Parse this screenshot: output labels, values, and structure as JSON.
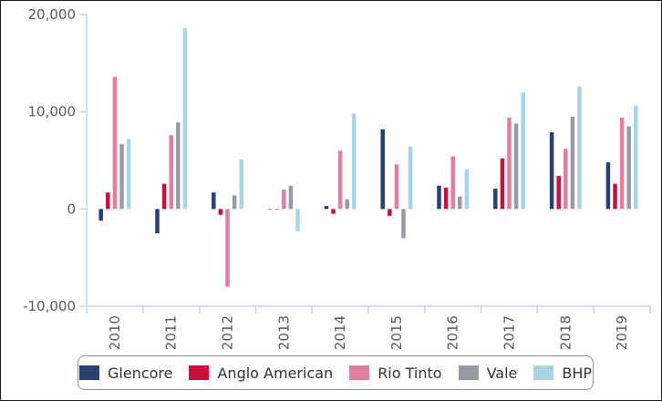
{
  "chart_data": {
    "type": "bar",
    "categories": [
      "2010",
      "2011",
      "2012",
      "2013",
      "2014",
      "2015",
      "2016",
      "2017",
      "2018",
      "2019"
    ],
    "series": [
      {
        "name": "Glencore",
        "color": "#2a3f73",
        "values": [
          -1200,
          -2500,
          1700,
          0,
          300,
          8200,
          2400,
          2100,
          7900,
          4800
        ]
      },
      {
        "name": "Anglo American",
        "color": "#c8103e",
        "values": [
          1700,
          2600,
          -600,
          0,
          -500,
          -700,
          2200,
          5200,
          3400,
          2600
        ]
      },
      {
        "name": "Rio Tinto",
        "color": "#e07fa0",
        "values": [
          13600,
          7600,
          -8000,
          2000,
          6000,
          4600,
          5400,
          9400,
          6200,
          9400
        ]
      },
      {
        "name": "Vale",
        "color": "#9a9ba2",
        "values": [
          6700,
          8900,
          1400,
          2400,
          1000,
          -3000,
          1300,
          8800,
          9500,
          8500
        ]
      },
      {
        "name": "BHP",
        "color": "#a9d4e8",
        "values": [
          7200,
          18600,
          5100,
          -2300,
          9800,
          6400,
          4100,
          12000,
          12600,
          10600
        ]
      }
    ],
    "yticks": [
      "20,000",
      "10,000",
      "0",
      "-10,000"
    ],
    "ytick_values": [
      20000,
      10000,
      0,
      -10000
    ],
    "ylim": [
      -10000,
      20000
    ],
    "legend_position": "bottom",
    "grid": false
  }
}
